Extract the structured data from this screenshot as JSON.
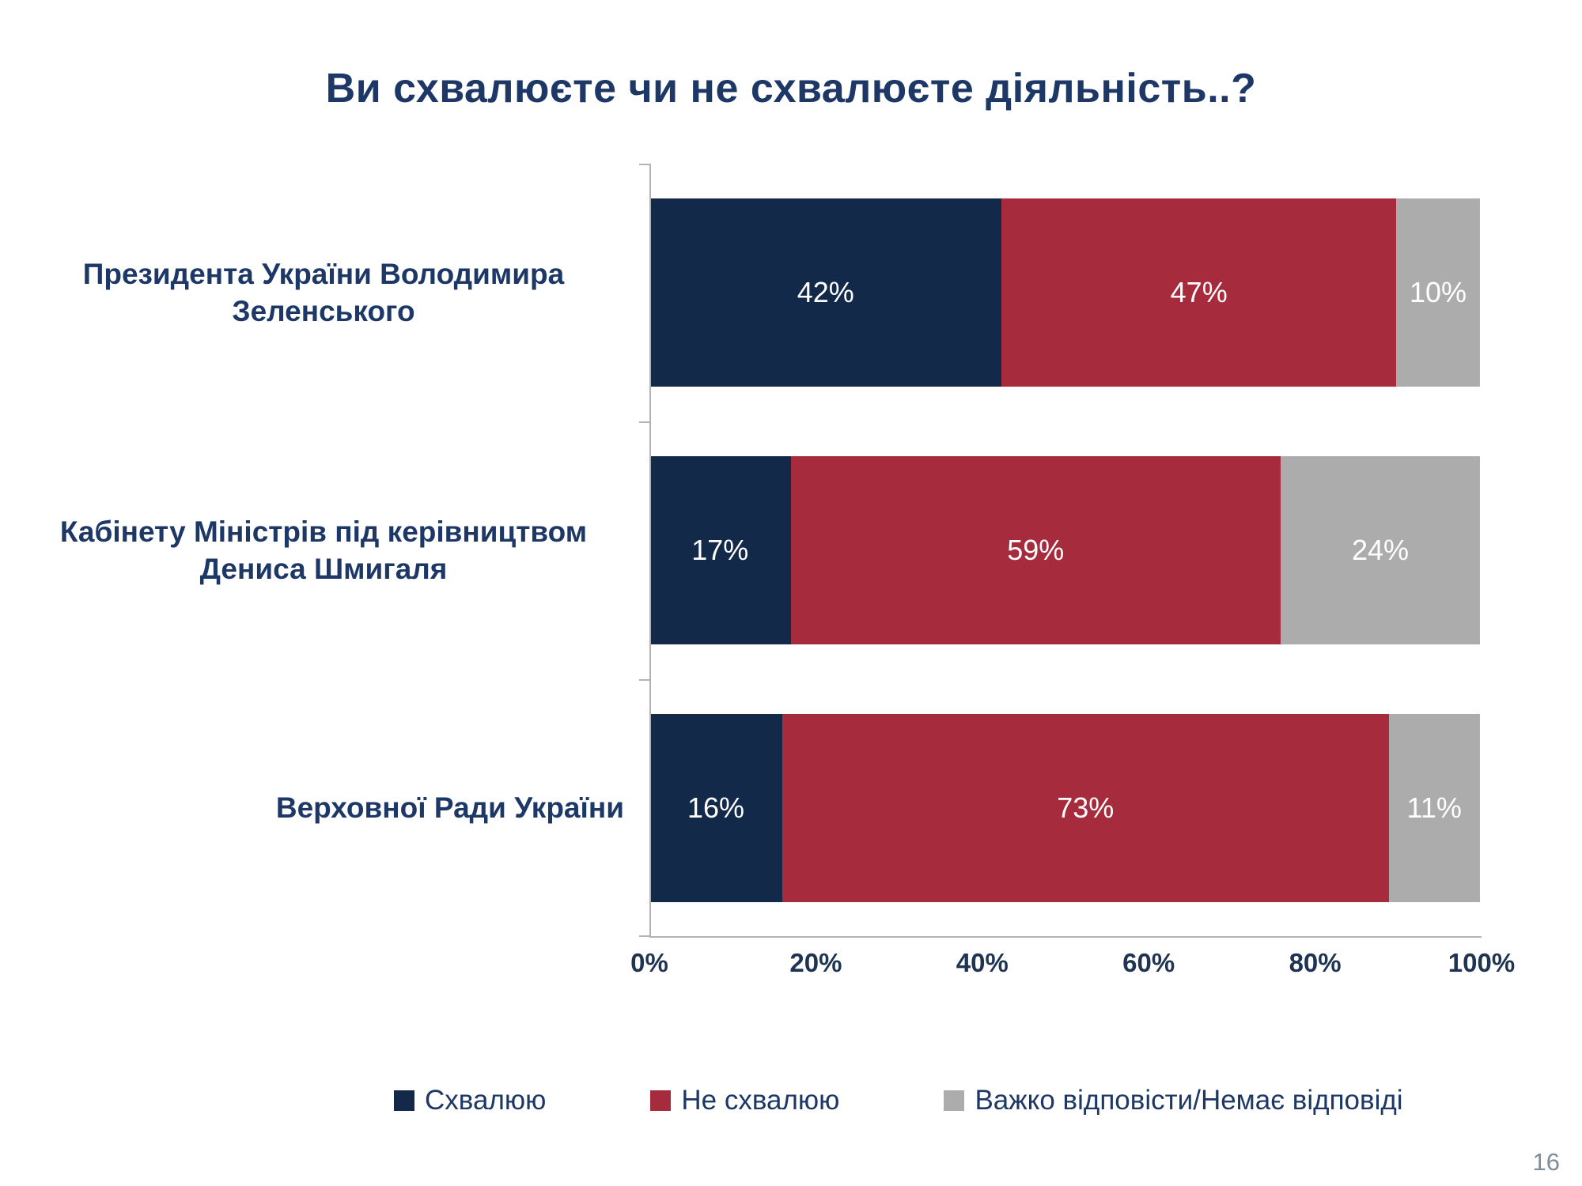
{
  "page": {
    "number": "16"
  },
  "chart_data": {
    "type": "bar",
    "stacked": true,
    "orientation": "horizontal",
    "title": "Ви схвалюєте чи не схвалюєте діяльність..?",
    "categories": [
      "Президента України Володимира Зеленського",
      "Кабінету Міністрів під керівництвом Дениса Шмигаля",
      "Верховної Ради України"
    ],
    "series": [
      {
        "name": "Схвалюю",
        "color": "#13294a",
        "values": [
          42,
          17,
          16
        ]
      },
      {
        "name": "Не схвалюю",
        "color": "#a62b3d",
        "values": [
          47,
          59,
          73
        ]
      },
      {
        "name": "Важко відповісти/Немає відповіді",
        "color": "#acacac",
        "values": [
          10,
          24,
          11
        ]
      }
    ],
    "value_label_format": "{v}%",
    "x_ticks": [
      "0%",
      "20%",
      "40%",
      "60%",
      "80%",
      "100%"
    ],
    "xlim": [
      0,
      100
    ],
    "grid": false,
    "legend_position": "bottom",
    "axis_color": "#b3b3b3"
  }
}
